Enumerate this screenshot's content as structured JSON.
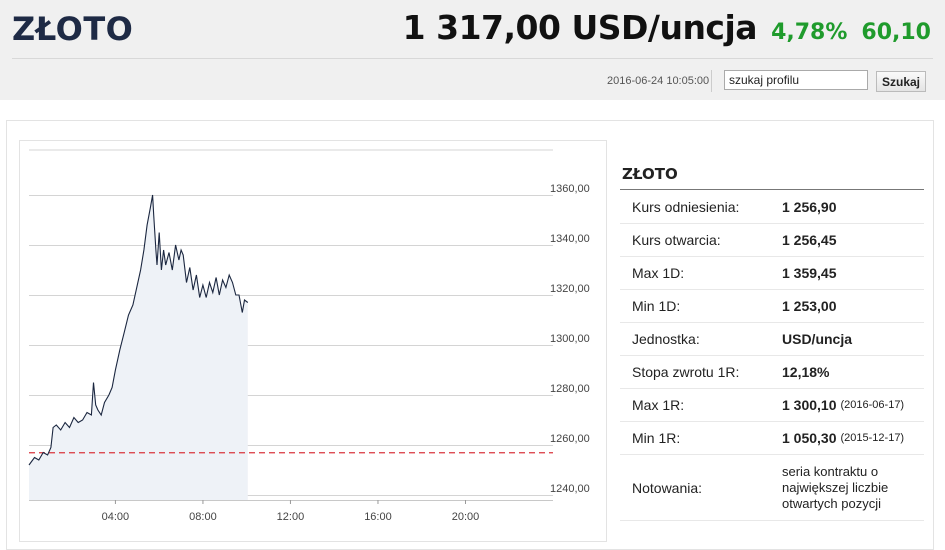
{
  "header": {
    "title": "ZŁOTO",
    "price": "1 317,00 USD/uncja",
    "change_percent": "4,78%",
    "change_abs": "60,10",
    "timestamp": "2016-06-24 10:05:00",
    "search": {
      "value": "szukaj profilu",
      "button": "Szukaj"
    }
  },
  "colors": {
    "change": "#1f9b2c",
    "title": "#1e2a45",
    "line": "#1b2740",
    "reference_line": "#d9363e"
  },
  "info": {
    "title": "ZŁOTO",
    "rows": [
      {
        "label": "Kurs odniesienia:",
        "value": "1 256,90",
        "date": ""
      },
      {
        "label": "Kurs otwarcia:",
        "value": "1 256,45",
        "date": ""
      },
      {
        "label": "Max 1D:",
        "value": "1 359,45",
        "date": ""
      },
      {
        "label": "Min 1D:",
        "value": "1 253,00",
        "date": ""
      },
      {
        "label": "Jednostka:",
        "value": "USD/uncja",
        "date": ""
      },
      {
        "label": "Stopa zwrotu 1R:",
        "value": "12,18%",
        "date": ""
      },
      {
        "label": "Max 1R:",
        "value": "1 300,10",
        "date": "(2016-06-17)"
      },
      {
        "label": "Min 1R:",
        "value": "1 050,30",
        "date": "(2015-12-17)"
      },
      {
        "label": "Notowania:",
        "value": "seria kontraktu o największej liczbie otwartych pozycji",
        "date": ""
      }
    ]
  },
  "chart_data": {
    "type": "area",
    "x_unit": "hour of day",
    "xlim": [
      0.05,
      24
    ],
    "ylim": [
      1238,
      1378
    ],
    "y_ticks": [
      1240,
      1260,
      1280,
      1300,
      1320,
      1340,
      1360
    ],
    "y_tick_labels": [
      "1240,00",
      "1260,00",
      "1280,00",
      "1300,00",
      "1320,00",
      "1340,00",
      "1360,00"
    ],
    "x_ticks": [
      4,
      8,
      12,
      16,
      20
    ],
    "x_tick_labels": [
      "04:00",
      "08:00",
      "12:00",
      "16:00",
      "20:00"
    ],
    "reference_value": 1256.9,
    "grid": true,
    "series": [
      {
        "x": [
          0.05,
          0.3,
          0.5,
          0.7,
          0.9,
          1.05,
          1.15,
          1.3,
          1.5,
          1.7,
          1.9,
          2.1,
          2.3,
          2.5,
          2.7,
          2.9,
          3.0,
          3.1,
          3.2,
          3.35,
          3.5,
          3.7,
          3.85,
          4.0,
          4.2,
          4.4,
          4.6,
          4.8,
          5.0,
          5.15,
          5.3,
          5.45,
          5.6,
          5.7,
          5.75,
          5.8,
          5.85,
          5.9,
          6.0,
          6.1,
          6.2,
          6.3,
          6.45,
          6.6,
          6.75,
          6.9,
          7.0,
          7.1,
          7.25,
          7.4,
          7.55,
          7.7,
          7.85,
          8.0,
          8.15,
          8.3,
          8.45,
          8.6,
          8.75,
          8.9,
          9.05,
          9.2,
          9.35,
          9.5,
          9.65,
          9.8,
          9.9,
          10.05
        ],
        "y": [
          1252,
          1255,
          1254,
          1257,
          1256,
          1259,
          1267,
          1268,
          1266,
          1269,
          1267,
          1271,
          1269,
          1270,
          1273,
          1272,
          1285,
          1276,
          1274,
          1272,
          1277,
          1280,
          1283,
          1290,
          1298,
          1305,
          1312,
          1316,
          1324,
          1330,
          1338,
          1348,
          1355,
          1360,
          1352,
          1345,
          1338,
          1332,
          1345,
          1330,
          1338,
          1332,
          1337,
          1330,
          1340,
          1334,
          1338,
          1336,
          1325,
          1331,
          1322,
          1328,
          1319,
          1324,
          1319,
          1325,
          1321,
          1327,
          1320,
          1326,
          1323,
          1328,
          1325,
          1320,
          1320,
          1313,
          1318,
          1317
        ]
      }
    ]
  }
}
